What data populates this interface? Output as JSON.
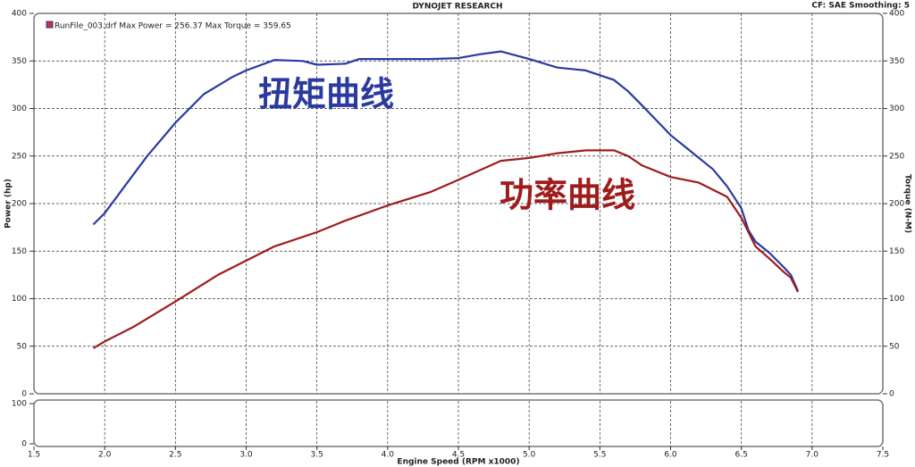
{
  "chart_data": [
    {
      "type": "line",
      "title": "DYNOJET RESEARCH",
      "subtitle": "CF: SAE  Smoothing: 5",
      "legend_label": "RunFile_003.drf Max Power = 256.37    Max Torque = 359.65",
      "ylabel": "Power (hp)",
      "y2label": "Torque (N-M)",
      "xlim": [
        1.5,
        7.5
      ],
      "xticks": [
        1.5,
        2,
        2.5,
        3,
        3.5,
        4,
        4.5,
        5,
        5.5,
        6,
        6.5,
        7,
        7.5
      ],
      "ylim": [
        0,
        400
      ],
      "yticks": [
        0,
        50,
        100,
        150,
        200,
        250,
        300,
        350,
        400
      ],
      "y2lim": [
        0,
        400
      ],
      "y2ticks": [
        0,
        50,
        100,
        150,
        200,
        250,
        300,
        350,
        400
      ],
      "grid": true,
      "series": [
        {
          "name": "扭矩曲线",
          "color": "#2b3aa0",
          "axis": "y2",
          "x": [
            1.92,
            2.0,
            2.15,
            2.3,
            2.5,
            2.7,
            2.9,
            3.0,
            3.2,
            3.4,
            3.5,
            3.7,
            3.8,
            4.0,
            4.3,
            4.5,
            4.65,
            4.8,
            5.0,
            5.2,
            5.4,
            5.6,
            5.7,
            5.8,
            6.0,
            6.2,
            6.3,
            6.4,
            6.5,
            6.55,
            6.6,
            6.7,
            6.8,
            6.85,
            6.9
          ],
          "values": [
            178,
            190,
            220,
            250,
            285,
            315,
            333,
            340,
            351,
            350,
            346,
            347,
            352,
            352,
            352,
            353,
            357,
            360,
            352,
            343,
            340,
            330,
            318,
            303,
            272,
            248,
            236,
            218,
            195,
            172,
            160,
            148,
            133,
            125,
            108
          ]
        },
        {
          "name": "功率曲线",
          "color": "#9e1c1c",
          "x": [
            1.92,
            2.0,
            2.2,
            2.5,
            2.8,
            3.0,
            3.2,
            3.5,
            3.7,
            4.0,
            4.3,
            4.5,
            4.8,
            5.0,
            5.2,
            5.4,
            5.6,
            5.7,
            5.8,
            6.0,
            6.2,
            6.4,
            6.5,
            6.6,
            6.7,
            6.8,
            6.85,
            6.9
          ],
          "values": [
            48,
            55,
            70,
            97,
            125,
            140,
            155,
            170,
            182,
            198,
            212,
            225,
            245,
            248,
            253,
            256,
            256,
            250,
            240,
            228,
            222,
            207,
            185,
            155,
            142,
            128,
            122,
            107
          ]
        }
      ]
    },
    {
      "type": "line",
      "xlabel": "Engine Speed (RPM x1000)",
      "xlim": [
        1.5,
        7.5
      ],
      "xticks": [
        1.5,
        {
          "value": 2,
          "label": "2.0"
        },
        2.5,
        {
          "value": 3,
          "label": "3.0"
        },
        3.5,
        {
          "value": 4,
          "label": "4.0"
        },
        4.5,
        {
          "value": 5,
          "label": "5.0"
        },
        5.5,
        {
          "value": 6,
          "label": "6.0"
        },
        6.5,
        {
          "value": 7,
          "label": "7.0"
        },
        7.5
      ],
      "ylim": [
        0,
        100
      ],
      "yticks": [
        0,
        100
      ],
      "grid": true,
      "series": []
    }
  ]
}
